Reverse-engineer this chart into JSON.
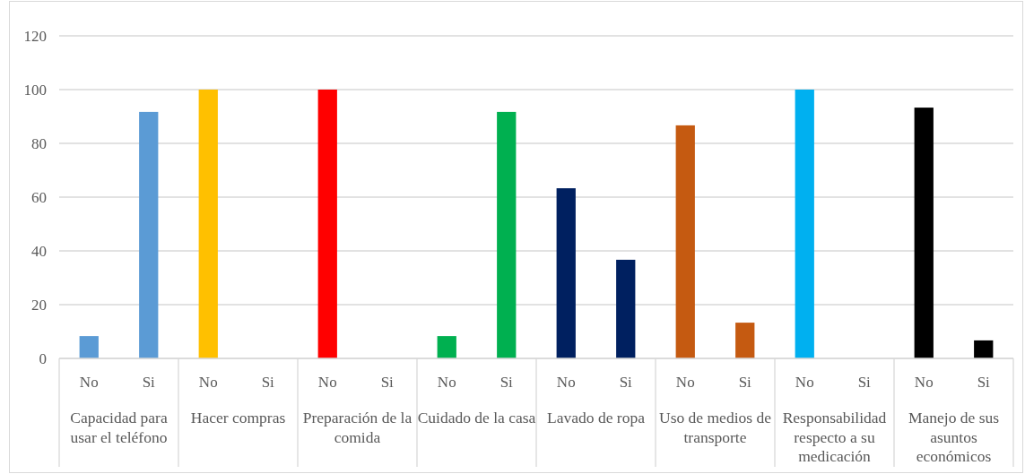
{
  "chart_data": {
    "type": "bar",
    "categories": [
      "No",
      "Si",
      "No",
      "Si",
      "No",
      "Si",
      "No",
      "Si",
      "No",
      "Si",
      "No",
      "Si",
      "No",
      "Si",
      "No",
      "Si"
    ],
    "values": [
      8.3,
      91.7,
      100,
      0,
      100,
      0,
      8.3,
      91.7,
      63.3,
      36.7,
      86.7,
      13.3,
      100,
      0,
      93.3,
      6.7
    ],
    "colors": [
      "#5b9bd5",
      "#5b9bd5",
      "#ffc000",
      "#ffc000",
      "#ff0000",
      "#ff0000",
      "#00b050",
      "#00b050",
      "#002060",
      "#002060",
      "#c55a11",
      "#c55a11",
      "#00b0f0",
      "#00b0f0",
      "#000000",
      "#000000"
    ],
    "ylim": [
      0,
      120
    ],
    "yticks": [
      0,
      20,
      40,
      60,
      80,
      100,
      120
    ],
    "grid": "y",
    "annotations": [
      "Capacidad para usar el teléfono",
      "Hacer compras",
      "Preparación de la comida",
      "Cuidado de la casa",
      "Lavado de ropa",
      "Uso de medios de transporte",
      "Responsabilidad respecto a su medicación",
      "Manejo de sus asuntos económicos"
    ]
  }
}
